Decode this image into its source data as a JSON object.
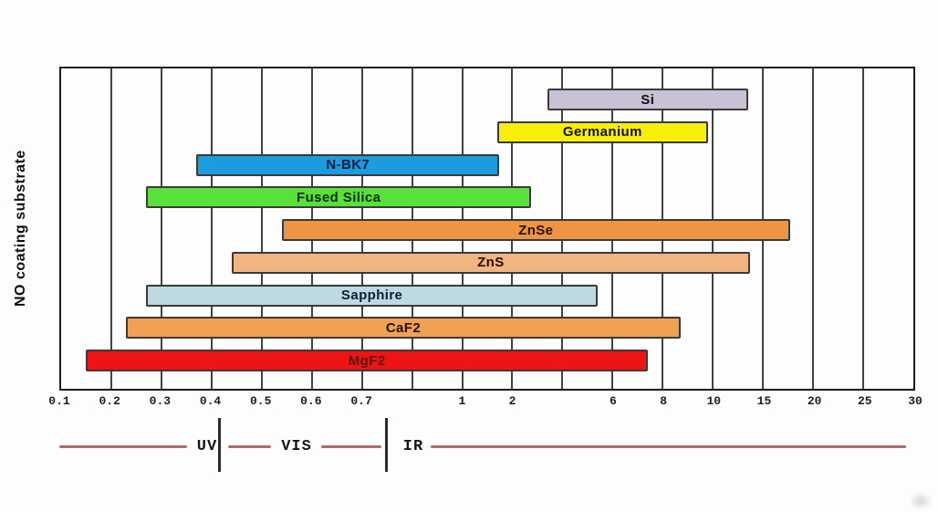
{
  "figure": {
    "background": "#fdfdfd",
    "y_axis_label": "NO coating substrate"
  },
  "chart_data": {
    "type": "bar",
    "subtype": "horizontal-range-bars (optical transmission ranges, wavelength in um)",
    "title": "",
    "xlabel": "",
    "ylabel": "NO coating substrate",
    "grid": "vertical-only",
    "x_scale": "uniform spacing per tick, non-linear values",
    "x_ticks": [
      {
        "value": 0.1,
        "label": "0.1"
      },
      {
        "value": 0.2,
        "label": "0.2"
      },
      {
        "value": 0.3,
        "label": "0.3"
      },
      {
        "value": 0.4,
        "label": "0.4"
      },
      {
        "value": 0.5,
        "label": "0.5"
      },
      {
        "value": 0.6,
        "label": "0.6"
      },
      {
        "value": 0.7,
        "label": "0.7"
      },
      {
        "value": 0.8,
        "label": ""
      },
      {
        "value": 1,
        "label": "1"
      },
      {
        "value": 2,
        "label": "2"
      },
      {
        "value": 4,
        "label": ""
      },
      {
        "value": 6,
        "label": "6"
      },
      {
        "value": 8,
        "label": "8"
      },
      {
        "value": 10,
        "label": "10"
      },
      {
        "value": 15,
        "label": "15"
      },
      {
        "value": 20,
        "label": "20"
      },
      {
        "value": 25,
        "label": "25"
      },
      {
        "value": 30,
        "label": "30"
      }
    ],
    "series": [
      {
        "name": "Si",
        "range_um": [
          3.4,
          13.5
        ],
        "color": "#c9c2d6",
        "text_color": "#101010"
      },
      {
        "name": "Germanium",
        "range_um": [
          1.7,
          9.8
        ],
        "color": "#f8ee0a",
        "text_color": "#101010"
      },
      {
        "name": "N-BK7",
        "range_um": [
          0.37,
          1.74
        ],
        "color": "#1b9cdf",
        "text_color": "#0a1a3a"
      },
      {
        "name": "Fused Silica",
        "range_um": [
          0.27,
          2.75
        ],
        "color": "#59e03a",
        "text_color": "#0b2a06"
      },
      {
        "name": "ZnSe",
        "range_um": [
          0.54,
          17.7
        ],
        "color": "#ef9440",
        "text_color": "#241105"
      },
      {
        "name": "ZnS",
        "range_um": [
          0.44,
          13.7
        ],
        "color": "#f2b481",
        "text_color": "#241105"
      },
      {
        "name": "Sapphire",
        "range_um": [
          0.27,
          5.4
        ],
        "color": "#bfd9e2",
        "text_color": "#0d1c2e"
      },
      {
        "name": "CaF2",
        "range_um": [
          0.23,
          8.7
        ],
        "color": "#f0a153",
        "text_color": "#241105"
      },
      {
        "name": "MgF2",
        "range_um": [
          0.15,
          7.4
        ],
        "color": "#ee1414",
        "text_color": "#571712"
      }
    ],
    "bar_outline_color": "#3a3a3a",
    "gridline_color": "#424242",
    "plot_border_color": "#1b1b1b"
  },
  "spectrum_bands": {
    "labels": [
      "UV",
      "VIS",
      "IR"
    ],
    "line_color": "#b26868",
    "divider_color": "#2b2b2b"
  }
}
